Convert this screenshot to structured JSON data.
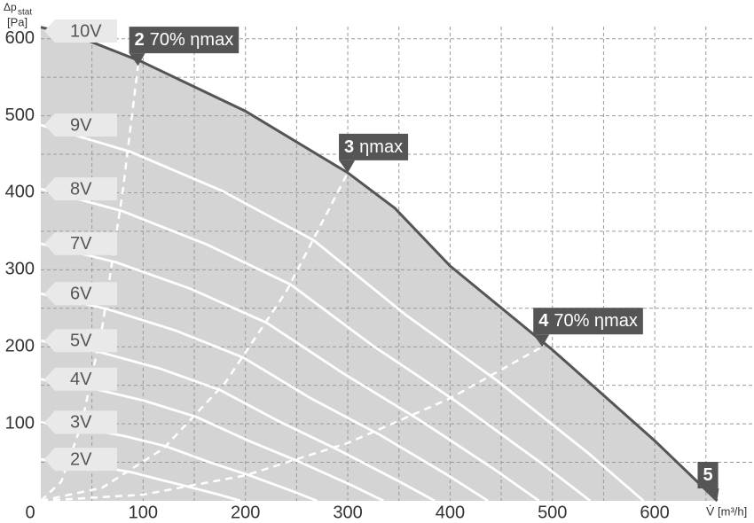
{
  "chart_data": {
    "type": "line",
    "ylabel": {
      "symbol": "Δp",
      "subscript": "stat",
      "unit": "[Pa]"
    },
    "xlabel": {
      "symbol": "V̇",
      "unit": "[m³/h]"
    },
    "xlim": [
      0,
      697
    ],
    "ylim": [
      0,
      610
    ],
    "xticks": [
      0,
      100,
      200,
      300,
      400,
      500,
      600
    ],
    "yticks": [
      100,
      200,
      300,
      400,
      500,
      600
    ],
    "xgrid": [
      50,
      100,
      150,
      200,
      250,
      300,
      350,
      400,
      450,
      500,
      550,
      600,
      650
    ],
    "ygrid": [
      50,
      100,
      150,
      200,
      250,
      300,
      350,
      400,
      450,
      500,
      550,
      600
    ],
    "area_color": "#d4d4d4",
    "series": [
      {
        "name": "10V",
        "color": "#555555",
        "x": [
          0,
          34,
          99,
          200,
          300,
          346,
          400,
          500,
          600,
          661
        ],
        "y": [
          615,
          604,
          570,
          506,
          426,
          380,
          305,
          196,
          78,
          0
        ]
      },
      {
        "name": "9V",
        "color": "#ffffff",
        "x": [
          0,
          88,
          178,
          267,
          356,
          446,
          535,
          589
        ],
        "y": [
          488,
          453,
          402,
          338,
          242,
          156,
          62,
          0
        ]
      },
      {
        "name": "8V",
        "color": "#ffffff",
        "x": [
          0,
          80,
          162,
          244,
          325,
          406,
          487,
          537
        ],
        "y": [
          405,
          376,
          333,
          281,
          201,
          129,
          51,
          0
        ]
      },
      {
        "name": "7V",
        "color": "#ffffff",
        "x": [
          0,
          73,
          147,
          221,
          295,
          369,
          442,
          487
        ],
        "y": [
          334,
          310,
          275,
          231,
          166,
          106,
          42,
          0
        ]
      },
      {
        "name": "6V",
        "color": "#ffffff",
        "x": [
          0,
          65,
          132,
          198,
          264,
          331,
          397,
          437
        ],
        "y": [
          269,
          249,
          221,
          186,
          133,
          86,
          34,
          0
        ]
      },
      {
        "name": "5V",
        "color": "#ffffff",
        "x": [
          0,
          58,
          116,
          175,
          233,
          291,
          349,
          385
        ],
        "y": [
          208,
          193,
          172,
          144,
          103,
          66,
          26,
          0
        ]
      },
      {
        "name": "4V",
        "color": "#ffffff",
        "x": [
          0,
          50,
          101,
          152,
          203,
          254,
          304,
          335
        ],
        "y": [
          158,
          146,
          130,
          109,
          78,
          50,
          20,
          0
        ]
      },
      {
        "name": "3V",
        "color": "#ffffff",
        "x": [
          0,
          40,
          82,
          122,
          163,
          204,
          245,
          270
        ],
        "y": [
          102,
          95,
          84,
          71,
          51,
          33,
          13,
          0
        ]
      },
      {
        "name": "2V",
        "color": "#ffffff",
        "x": [
          0,
          29,
          59,
          89,
          118,
          148,
          177,
          195
        ],
        "y": [
          54,
          50,
          44,
          37,
          27,
          17,
          7,
          0
        ]
      }
    ],
    "efficiency_lines": [
      {
        "x": [
          0,
          20,
          40,
          60,
          80,
          95
        ],
        "y": [
          0,
          25,
          100,
          225,
          401,
          565
        ]
      },
      {
        "x": [
          0,
          60,
          120,
          180,
          240,
          300
        ],
        "y": [
          0,
          17,
          68,
          153,
          272,
          426
        ]
      },
      {
        "x": [
          0,
          100,
          200,
          300,
          400,
          490
        ],
        "y": [
          0,
          8,
          33,
          75,
          133,
          200
        ]
      }
    ],
    "points": [
      {
        "number": "2",
        "label": "70% ηmax",
        "x": 95,
        "y": 565
      },
      {
        "number": "3",
        "label": "ηmax",
        "x": 300,
        "y": 426
      },
      {
        "number": "4",
        "label": "70% ηmax",
        "x": 490,
        "y": 200
      },
      {
        "number": "5",
        "x": 661,
        "y": 0
      }
    ]
  }
}
